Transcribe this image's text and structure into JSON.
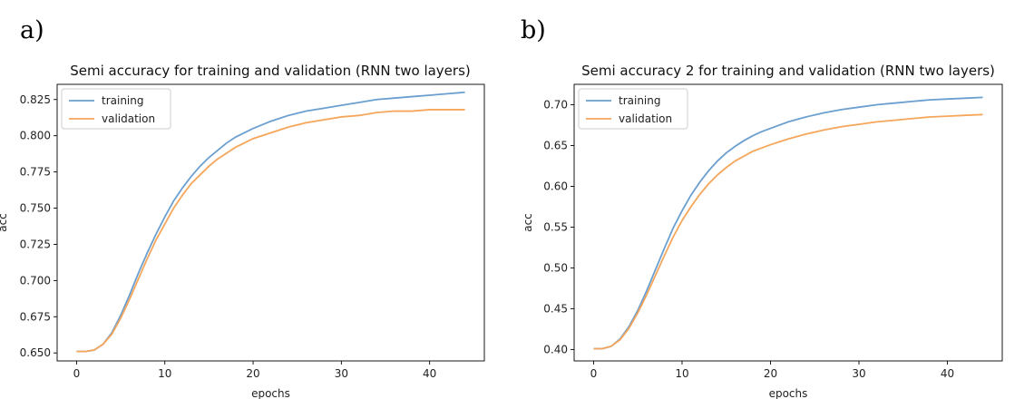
{
  "panels": {
    "a": {
      "letter": "a)"
    },
    "b": {
      "letter": "b)"
    }
  },
  "chart_data": [
    {
      "type": "line",
      "title": "Semi accuracy for training and validation (RNN two layers)",
      "xlabel": "epochs",
      "ylabel": "acc",
      "xlim": [
        -2.2,
        46.2
      ],
      "ylim": [
        0.6445,
        0.8355
      ],
      "xticks": [
        0,
        10,
        20,
        30,
        40
      ],
      "yticks": [
        0.65,
        0.675,
        0.7,
        0.725,
        0.75,
        0.775,
        0.8,
        0.825
      ],
      "ytick_labels": [
        "0.650",
        "0.675",
        "0.700",
        "0.725",
        "0.750",
        "0.775",
        "0.800",
        "0.825"
      ],
      "legend_position": "top-left",
      "grid": false,
      "series": [
        {
          "name": "training",
          "color": "#6a9fcf",
          "x": [
            0,
            1,
            2,
            3,
            4,
            5,
            6,
            7,
            8,
            9,
            10,
            11,
            12,
            13,
            14,
            15,
            16,
            17,
            18,
            19,
            20,
            22,
            24,
            26,
            28,
            30,
            32,
            34,
            36,
            38,
            40,
            42,
            44
          ],
          "y": [
            0.651,
            0.651,
            0.652,
            0.656,
            0.664,
            0.676,
            0.69,
            0.705,
            0.719,
            0.732,
            0.744,
            0.755,
            0.764,
            0.772,
            0.779,
            0.785,
            0.79,
            0.795,
            0.799,
            0.802,
            0.805,
            0.81,
            0.814,
            0.817,
            0.819,
            0.821,
            0.823,
            0.825,
            0.826,
            0.827,
            0.828,
            0.829,
            0.83
          ]
        },
        {
          "name": "validation",
          "color": "#f5a65b",
          "x": [
            0,
            1,
            2,
            3,
            4,
            5,
            6,
            7,
            8,
            9,
            10,
            11,
            12,
            13,
            14,
            15,
            16,
            17,
            18,
            19,
            20,
            22,
            24,
            26,
            28,
            30,
            32,
            34,
            36,
            38,
            40,
            42,
            44
          ],
          "y": [
            0.651,
            0.651,
            0.652,
            0.656,
            0.663,
            0.674,
            0.687,
            0.701,
            0.715,
            0.728,
            0.739,
            0.75,
            0.759,
            0.767,
            0.773,
            0.779,
            0.784,
            0.788,
            0.792,
            0.795,
            0.798,
            0.802,
            0.806,
            0.809,
            0.811,
            0.813,
            0.814,
            0.816,
            0.817,
            0.817,
            0.818,
            0.818,
            0.818
          ]
        }
      ]
    },
    {
      "type": "line",
      "title": "Semi accuracy 2 for training and validation (RNN two layers)",
      "xlabel": "epochs",
      "ylabel": "acc",
      "xlim": [
        -2.2,
        46.2
      ],
      "ylim": [
        0.386,
        0.725
      ],
      "xticks": [
        0,
        10,
        20,
        30,
        40
      ],
      "yticks": [
        0.4,
        0.45,
        0.5,
        0.55,
        0.6,
        0.65,
        0.7
      ],
      "ytick_labels": [
        "0.40",
        "0.45",
        "0.50",
        "0.55",
        "0.60",
        "0.65",
        "0.70"
      ],
      "legend_position": "top-left",
      "grid": false,
      "series": [
        {
          "name": "training",
          "color": "#6a9fcf",
          "x": [
            0,
            1,
            2,
            3,
            4,
            5,
            6,
            7,
            8,
            9,
            10,
            11,
            12,
            13,
            14,
            15,
            16,
            17,
            18,
            19,
            20,
            22,
            24,
            26,
            28,
            30,
            32,
            34,
            36,
            38,
            40,
            42,
            44
          ],
          "y": [
            0.401,
            0.401,
            0.404,
            0.413,
            0.428,
            0.448,
            0.472,
            0.498,
            0.524,
            0.549,
            0.57,
            0.589,
            0.605,
            0.619,
            0.631,
            0.641,
            0.649,
            0.656,
            0.662,
            0.667,
            0.671,
            0.679,
            0.685,
            0.69,
            0.694,
            0.697,
            0.7,
            0.702,
            0.704,
            0.706,
            0.707,
            0.708,
            0.709
          ]
        },
        {
          "name": "validation",
          "color": "#f5a65b",
          "x": [
            0,
            1,
            2,
            3,
            4,
            5,
            6,
            7,
            8,
            9,
            10,
            11,
            12,
            13,
            14,
            15,
            16,
            17,
            18,
            19,
            20,
            22,
            24,
            26,
            28,
            30,
            32,
            34,
            36,
            38,
            40,
            42,
            44
          ],
          "y": [
            0.401,
            0.401,
            0.404,
            0.412,
            0.426,
            0.445,
            0.467,
            0.491,
            0.515,
            0.538,
            0.558,
            0.575,
            0.59,
            0.603,
            0.614,
            0.623,
            0.631,
            0.637,
            0.643,
            0.647,
            0.651,
            0.658,
            0.664,
            0.669,
            0.673,
            0.676,
            0.679,
            0.681,
            0.683,
            0.685,
            0.686,
            0.687,
            0.688
          ]
        }
      ]
    }
  ]
}
